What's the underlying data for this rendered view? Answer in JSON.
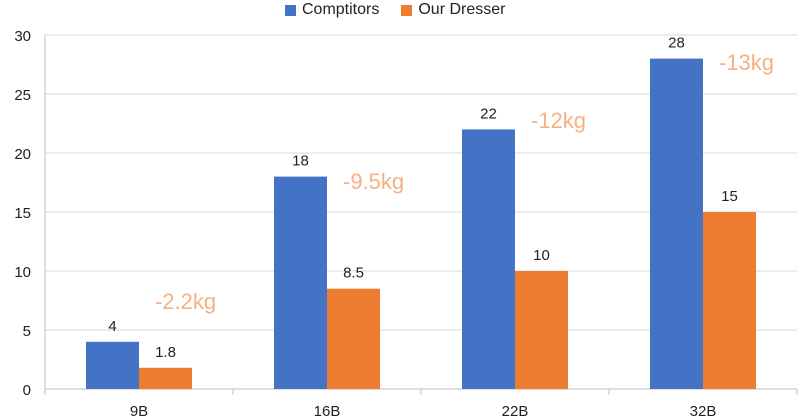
{
  "chart_data": {
    "type": "bar",
    "categories": [
      "9B",
      "16B",
      "22B",
      "32B"
    ],
    "series": [
      {
        "name": "Comptitors",
        "values": [
          4,
          18,
          22,
          28
        ],
        "color": "#4472C4"
      },
      {
        "name": "Our Dresser",
        "values": [
          1.8,
          8.5,
          10,
          15
        ],
        "color": "#ED7D31"
      }
    ],
    "annotations": [
      "-2.2kg",
      "-9.5kg",
      "-12kg",
      "-13kg"
    ],
    "annotation_color": "#F4B183",
    "ylim": [
      0,
      30
    ],
    "yticks": [
      0,
      5,
      10,
      15,
      20,
      25,
      30
    ],
    "legend_position": "top",
    "grid": true,
    "title": "",
    "xlabel": "",
    "ylabel": ""
  }
}
